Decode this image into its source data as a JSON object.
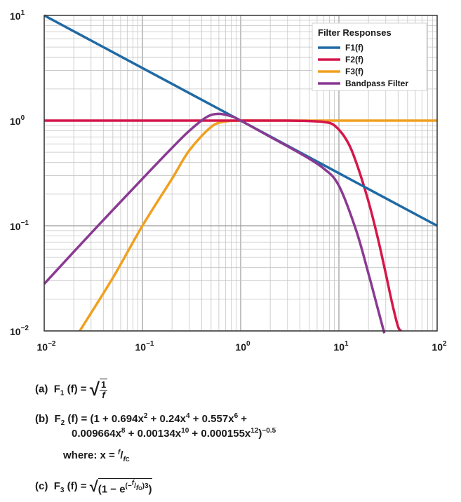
{
  "chart_data": {
    "type": "line",
    "x_scale": "log",
    "y_scale": "log",
    "xlim": [
      0.01,
      100
    ],
    "ylim": [
      0.01,
      10
    ],
    "grid": true,
    "legend_placement": "top-right",
    "legend_title": "Filter Responses",
    "x_ticks": [
      {
        "base": "10",
        "exp": "−2",
        "value": 0.01
      },
      {
        "base": "10",
        "exp": "−1",
        "value": 0.1
      },
      {
        "base": "10",
        "exp": "0",
        "value": 1
      },
      {
        "base": "10",
        "exp": "1",
        "value": 10
      },
      {
        "base": "10",
        "exp": "2",
        "value": 100
      }
    ],
    "y_ticks": [
      {
        "base": "10",
        "exp": "1",
        "value": 10
      },
      {
        "base": "10",
        "exp": "0",
        "value": 1
      },
      {
        "base": "10",
        "exp": "−1",
        "value": 0.1
      },
      {
        "base": "10",
        "exp": "−2",
        "value": 0.01
      }
    ],
    "series": [
      {
        "name": "F1(f)",
        "color": "#1f6aa5",
        "x": [
          0.01,
          0.1,
          1,
          10,
          100
        ],
        "y": [
          10,
          3.16,
          1,
          0.316,
          0.1
        ]
      },
      {
        "name": "F2(f)",
        "color": "#d4174a",
        "x": [
          0.01,
          1,
          3,
          5,
          7,
          9,
          12,
          15,
          20,
          25,
          30,
          35,
          40,
          43
        ],
        "y": [
          1,
          1,
          1,
          0.99,
          0.97,
          0.9,
          0.65,
          0.4,
          0.17,
          0.075,
          0.035,
          0.018,
          0.011,
          0.01
        ]
      },
      {
        "name": "F3(f)",
        "color": "#f0a020",
        "x": [
          0.023,
          0.05,
          0.1,
          0.2,
          0.3,
          0.5,
          0.7,
          1,
          2,
          100
        ],
        "y": [
          0.01,
          0.032,
          0.1,
          0.28,
          0.52,
          0.87,
          0.98,
          1,
          1,
          1
        ]
      },
      {
        "name": "Bandpass Filter",
        "color": "#8a3a92",
        "x": [
          0.01,
          0.03,
          0.1,
          0.2,
          0.3,
          0.45,
          0.6,
          0.8,
          1,
          2,
          4,
          7,
          10,
          15,
          20,
          25,
          29
        ],
        "y": [
          0.028,
          0.085,
          0.28,
          0.55,
          0.8,
          1.08,
          1.16,
          1.1,
          1,
          0.7,
          0.49,
          0.35,
          0.24,
          0.09,
          0.035,
          0.016,
          0.0095
        ]
      }
    ]
  },
  "formulas": {
    "a_label": "(a)",
    "a_func": "F",
    "a_sub": "1",
    "a_arg": "(f) =",
    "a_num": "1",
    "a_den": "f",
    "b_label": "(b)",
    "b_func": "F",
    "b_sub": "2",
    "b_arg": "(f) = (1 + 0.694x",
    "b_e1": "2",
    "b_t2": " + 0.24x",
    "b_e2": "4",
    "b_t3": " + 0.557x",
    "b_e3": "6",
    "b_t4": " +",
    "b_line2_t1": "0.009664x",
    "b_line2_e1": "8",
    "b_line2_t2": " + 0.00134x",
    "b_line2_e2": "10",
    "b_line2_t3": " + 0.000155x",
    "b_line2_e3": "12",
    "b_line2_t4": ")",
    "b_line2_e4": "−0.5",
    "where_text": "where: x =",
    "where_f": "f",
    "where_fc": "f",
    "where_c": "C",
    "c_label": "(c)",
    "c_func": "F",
    "c_sub": "3",
    "c_arg": "(f) =",
    "c_body": "(1 − e",
    "c_exp_open": "(−",
    "c_exp_f": "f",
    "c_exp_fo": "f",
    "c_exp_o": "O",
    "c_exp_close": ")",
    "c_exp_pow": "3",
    "c_end": ")"
  }
}
